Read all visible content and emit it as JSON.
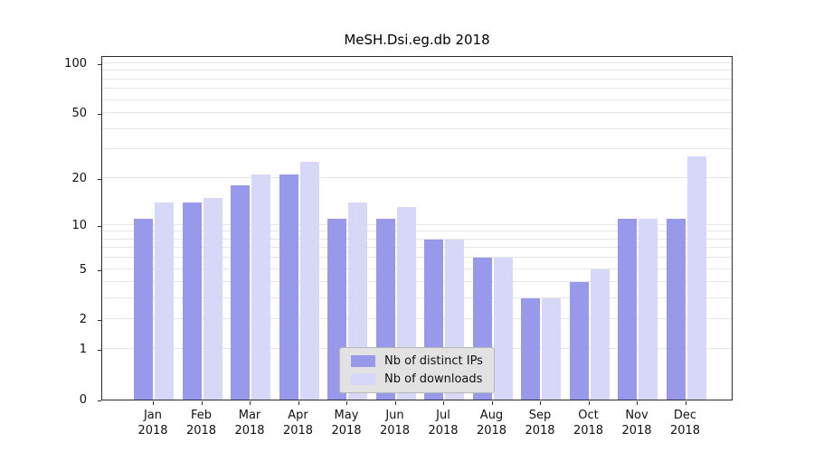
{
  "chart_data": {
    "type": "bar",
    "title": "MeSH.Dsi.eg.db 2018",
    "categories": [
      "Jan 2018",
      "Feb 2018",
      "Mar 2018",
      "Apr 2018",
      "May 2018",
      "Jun 2018",
      "Jul 2018",
      "Aug 2018",
      "Sep 2018",
      "Oct 2018",
      "Nov 2018",
      "Dec 2018"
    ],
    "series": [
      {
        "name": "Nb of distinct IPs",
        "color": "#9999ec",
        "values": [
          11,
          14,
          18,
          21,
          11,
          11,
          8,
          6,
          3,
          4,
          11,
          11
        ]
      },
      {
        "name": "Nb of downloads",
        "color": "#d7d7f8",
        "values": [
          14,
          15,
          21,
          25,
          14,
          13,
          8,
          6,
          3,
          5,
          11,
          27
        ]
      }
    ],
    "yscale": "log1p",
    "ylim": [
      0,
      100
    ],
    "yticks": [
      0,
      1,
      2,
      5,
      10,
      20,
      50,
      100
    ],
    "grid_values": [
      1,
      2,
      3,
      4,
      5,
      6,
      7,
      8,
      9,
      10,
      20,
      30,
      40,
      50,
      60,
      70,
      80,
      90,
      100
    ],
    "grid": "horizontal",
    "legend_position": "lower center inside plot"
  }
}
